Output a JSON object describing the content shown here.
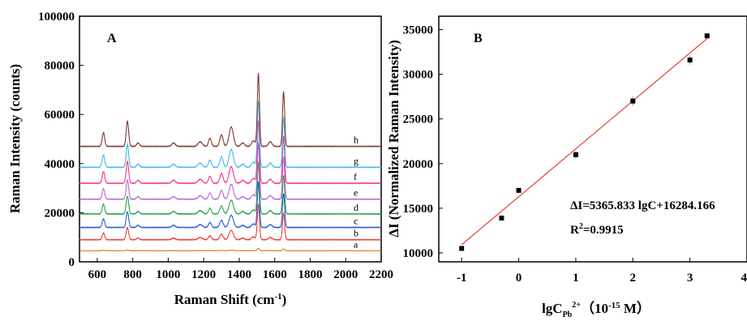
{
  "chart_data": [
    {
      "type": "line",
      "panel_label": "A",
      "xlabel": "Raman Shift (cm",
      "xlabel_sup": "-1",
      "xlabel_tail": ")",
      "ylabel": "Raman Intensity (counts)",
      "xlim": [
        500,
        2200
      ],
      "ylim": [
        0,
        100000
      ],
      "x_ticks": [
        600,
        800,
        1000,
        1200,
        1400,
        1600,
        1800,
        2000,
        2200
      ],
      "y_ticks": [
        0,
        20000,
        40000,
        60000,
        80000,
        100000
      ],
      "series": [
        {
          "name": "a",
          "color": "#e07b1a",
          "baseline": 4500,
          "scale": 0.03
        },
        {
          "name": "b",
          "color": "#e8413a",
          "baseline": 9000,
          "scale": 0.45
        },
        {
          "name": "c",
          "color": "#2a5cd6",
          "baseline": 14000,
          "scale": 0.58
        },
        {
          "name": "d",
          "color": "#2e9e4a",
          "baseline": 19500,
          "scale": 0.66
        },
        {
          "name": "e",
          "color": "#b46ad6",
          "baseline": 25500,
          "scale": 0.72
        },
        {
          "name": "f",
          "color": "#f0388a",
          "baseline": 32000,
          "scale": 0.8
        },
        {
          "name": "g",
          "color": "#47b7ec",
          "baseline": 38500,
          "scale": 0.85
        },
        {
          "name": "h",
          "color": "#7a3a30",
          "baseline": 47000,
          "scale": 0.93
        }
      ],
      "peaks": [
        {
          "x": 635,
          "height": 6000,
          "width": 7
        },
        {
          "x": 770,
          "height": 11000,
          "width": 7
        },
        {
          "x": 830,
          "height": 1500,
          "width": 8
        },
        {
          "x": 1030,
          "height": 1500,
          "width": 10
        },
        {
          "x": 1180,
          "height": 2000,
          "width": 12
        },
        {
          "x": 1235,
          "height": 3500,
          "width": 8
        },
        {
          "x": 1300,
          "height": 5000,
          "width": 9
        },
        {
          "x": 1355,
          "height": 8500,
          "width": 12
        },
        {
          "x": 1420,
          "height": 1500,
          "width": 10
        },
        {
          "x": 1480,
          "height": 2500,
          "width": 10
        },
        {
          "x": 1508,
          "height": 32000,
          "width": 6
        },
        {
          "x": 1575,
          "height": 2000,
          "width": 10
        },
        {
          "x": 1650,
          "height": 24000,
          "width": 6
        }
      ]
    },
    {
      "type": "scatter",
      "panel_label": "B",
      "xlabel": "lgC",
      "xlabel_sub": "Pb",
      "xlabel_sup": "2+",
      "xlabel_unit_prefix": "（10",
      "xlabel_unit_exp": "-15",
      "xlabel_unit_suffix": " M）",
      "ylabel": "ΔI (Normalized Raman Intensity)",
      "xlim": [
        -1.4,
        4.0
      ],
      "ylim": [
        9000,
        36500
      ],
      "x_ticks": [
        -1,
        0,
        1,
        2,
        3,
        4
      ],
      "y_ticks": [
        10000,
        15000,
        20000,
        25000,
        30000,
        35000
      ],
      "x": [
        -1,
        -0.3,
        0,
        1,
        2,
        3,
        3.3
      ],
      "y": [
        10500,
        13900,
        17000,
        21000,
        27000,
        31600,
        34300
      ],
      "error": [
        150,
        150,
        150,
        400,
        500,
        500,
        150
      ],
      "fit": {
        "slope": 5365.833,
        "intercept": 16284.166,
        "x_range": [
          -1,
          3.3
        ],
        "color": "#e8413a"
      },
      "equation": "ΔI=5365.833 lgC+16284.166",
      "r2_label": "R",
      "r2_sup": "2",
      "r2_value": "=0.9915"
    }
  ]
}
